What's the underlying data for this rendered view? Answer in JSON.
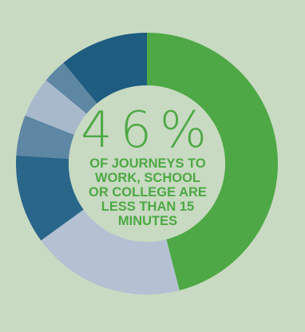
{
  "chart_data": {
    "type": "pie",
    "style": "donut",
    "headline_value": "46%",
    "caption_lines": [
      "OF JOURNEYS TO",
      "WORK, SCHOOL",
      "OR COLLEGE ARE",
      "LESS THAN 15",
      "MINUTES"
    ],
    "slices": [
      {
        "value": 46,
        "color": "#4ea845"
      },
      {
        "value": 19,
        "color": "#b3c1d3"
      },
      {
        "value": 11,
        "color": "#2a6689"
      },
      {
        "value": 5,
        "color": "#5d87a3"
      },
      {
        "value": 5,
        "color": "#a9b9cc"
      },
      {
        "value": 3,
        "color": "#5d87a3"
      },
      {
        "value": 11,
        "color": "#1e5c80"
      }
    ]
  },
  "colors": {
    "background": "#c8dac2",
    "hole": "#c8dac2",
    "accent": "#4ea845"
  }
}
